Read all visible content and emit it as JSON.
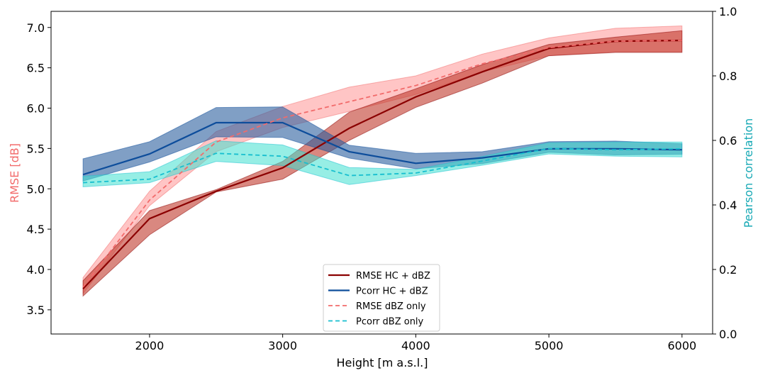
{
  "chart_data": {
    "type": "line",
    "xlabel": "Height [m a.s.l.]",
    "ylabel_left": "RMSE [dB]",
    "ylabel_right": "Pearson correlation",
    "xlim": [
      1260,
      6230
    ],
    "ylim_left": [
      3.2,
      7.2
    ],
    "ylim_right": [
      0.0,
      1.0
    ],
    "x_ticks": [
      2000,
      3000,
      4000,
      5000,
      6000
    ],
    "y_left_ticks": [
      "3.5",
      "4.0",
      "4.5",
      "5.0",
      "5.5",
      "6.0",
      "6.5",
      "7.0"
    ],
    "y_right_ticks": [
      "0.0",
      "0.2",
      "0.4",
      "0.6",
      "0.8",
      "1.0"
    ],
    "x": [
      1500,
      2000,
      2500,
      3000,
      3500,
      4000,
      4500,
      5000,
      5500,
      6000
    ],
    "legend_position": "lower center",
    "series": [
      {
        "name": "RMSE HC + dBZ",
        "axis": "left",
        "style": "solid",
        "color": "#8b0000",
        "band_color": "#c0392b",
        "values": [
          3.76,
          4.63,
          4.97,
          5.26,
          5.75,
          6.14,
          6.45,
          6.74,
          6.83,
          6.84
        ],
        "lower": [
          3.67,
          4.43,
          4.96,
          5.12,
          5.6,
          6.01,
          6.31,
          6.65,
          6.69,
          6.69
        ],
        "upper": [
          3.86,
          4.73,
          4.99,
          5.34,
          5.95,
          6.24,
          6.54,
          6.79,
          6.88,
          6.96
        ]
      },
      {
        "name": "Pcorr HC + dBZ",
        "axis": "right",
        "style": "solid",
        "color": "#0d4d9b",
        "band_color": "#2c5f9e",
        "values": [
          0.494,
          0.558,
          0.655,
          0.655,
          0.565,
          0.529,
          0.546,
          0.574,
          0.574,
          0.571
        ],
        "lower": [
          0.474,
          0.533,
          0.611,
          0.609,
          0.545,
          0.512,
          0.528,
          0.563,
          0.555,
          0.557
        ],
        "upper": [
          0.543,
          0.596,
          0.702,
          0.704,
          0.585,
          0.56,
          0.565,
          0.596,
          0.598,
          0.59
        ]
      },
      {
        "name": "RMSE dBZ only",
        "axis": "left",
        "style": "dashed",
        "color": "#f26b6b",
        "band_color": "#ff7f7f",
        "values": [
          3.78,
          4.86,
          5.58,
          5.88,
          6.08,
          6.28,
          6.55,
          6.75,
          6.83,
          6.84
        ],
        "lower": [
          3.7,
          4.79,
          5.46,
          5.76,
          5.96,
          6.17,
          6.45,
          6.65,
          6.7,
          6.7
        ],
        "upper": [
          3.9,
          4.97,
          5.71,
          6.02,
          6.26,
          6.4,
          6.67,
          6.87,
          6.99,
          7.02
        ]
      },
      {
        "name": "Pcorr dBZ only",
        "axis": "right",
        "style": "dashed",
        "color": "#17bfcf",
        "band_color": "#40e0d0",
        "values": [
          0.469,
          0.48,
          0.56,
          0.551,
          0.491,
          0.499,
          0.536,
          0.575,
          0.571,
          0.574
        ],
        "lower": [
          0.456,
          0.469,
          0.535,
          0.522,
          0.463,
          0.491,
          0.523,
          0.558,
          0.551,
          0.549
        ],
        "upper": [
          0.489,
          0.503,
          0.599,
          0.586,
          0.516,
          0.51,
          0.55,
          0.593,
          0.595,
          0.595
        ]
      }
    ]
  }
}
